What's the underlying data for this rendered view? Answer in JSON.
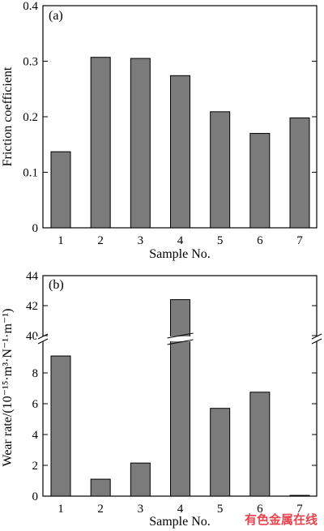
{
  "chart_data": [
    {
      "type": "bar",
      "panel_label": "(a)",
      "categories": [
        "1",
        "2",
        "3",
        "4",
        "5",
        "6",
        "7"
      ],
      "values": [
        0.137,
        0.307,
        0.305,
        0.274,
        0.209,
        0.17,
        0.198
      ],
      "xlabel": "Sample No.",
      "ylabel": "Friction coefficient",
      "ylim": [
        0,
        0.4
      ],
      "yticks": [
        "0",
        "0.1",
        "0.2",
        "0.3",
        "0.4"
      ],
      "grid": false
    },
    {
      "type": "bar",
      "panel_label": "(b)",
      "categories": [
        "1",
        "2",
        "3",
        "4",
        "5",
        "6",
        "7"
      ],
      "values": [
        9.1,
        1.1,
        2.15,
        42.4,
        5.7,
        6.75,
        0.05
      ],
      "xlabel": "Sample No.",
      "ylabel": "Wear rate/(10⁻¹⁵·m³·N⁻¹·m⁻¹)",
      "axis_break": {
        "lower": [
          0,
          10
        ],
        "upper": [
          40,
          44
        ]
      },
      "lower_yticks": [
        "0",
        "2",
        "4",
        "6",
        "8"
      ],
      "upper_yticks": [
        "40",
        "42",
        "44"
      ],
      "grid": false
    }
  ],
  "watermark": "有色金属在线"
}
